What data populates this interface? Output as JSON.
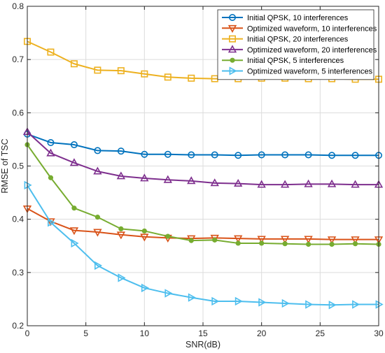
{
  "chart_data": {
    "type": "line",
    "title": "",
    "xlabel": "SNR(dB)",
    "ylabel": "RMSE of TSC",
    "xlim": [
      0,
      30
    ],
    "ylim": [
      0.2,
      0.8
    ],
    "xticks": [
      0,
      5,
      10,
      15,
      20,
      25,
      30
    ],
    "yticks": [
      0.2,
      0.3,
      0.4,
      0.5,
      0.6,
      0.7,
      0.8
    ],
    "grid": true,
    "legend_position": "top-right",
    "x": [
      0,
      2,
      4,
      6,
      8,
      10,
      12,
      14,
      16,
      18,
      20,
      22,
      24,
      26,
      28,
      30
    ],
    "series": [
      {
        "name": "Initial QPSK, 10 interferences",
        "color": "#0072BD",
        "marker": "circle",
        "values": [
          0.56,
          0.544,
          0.54,
          0.529,
          0.528,
          0.522,
          0.522,
          0.521,
          0.521,
          0.52,
          0.521,
          0.521,
          0.521,
          0.52,
          0.52,
          0.52
        ]
      },
      {
        "name": "Optimized waveform, 10 interferences",
        "color": "#D95319",
        "marker": "triangle-down",
        "values": [
          0.42,
          0.396,
          0.379,
          0.376,
          0.371,
          0.367,
          0.365,
          0.364,
          0.365,
          0.364,
          0.363,
          0.363,
          0.363,
          0.362,
          0.362,
          0.362
        ]
      },
      {
        "name": "Initial QPSK, 20 interferences",
        "color": "#EDB120",
        "marker": "square",
        "values": [
          0.734,
          0.714,
          0.692,
          0.68,
          0.679,
          0.673,
          0.667,
          0.665,
          0.664,
          0.664,
          0.665,
          0.665,
          0.664,
          0.664,
          0.663,
          0.663
        ]
      },
      {
        "name": "Optimized waveform, 20 interferences",
        "color": "#7E2F8E",
        "marker": "triangle-up",
        "values": [
          0.564,
          0.524,
          0.506,
          0.49,
          0.481,
          0.477,
          0.474,
          0.472,
          0.468,
          0.467,
          0.465,
          0.465,
          0.466,
          0.466,
          0.465,
          0.465
        ]
      },
      {
        "name": "Initial QPSK, 5 interferences",
        "color": "#77AC30",
        "marker": "dot",
        "values": [
          0.54,
          0.478,
          0.421,
          0.404,
          0.382,
          0.378,
          0.368,
          0.36,
          0.361,
          0.355,
          0.355,
          0.354,
          0.353,
          0.353,
          0.354,
          0.353
        ]
      },
      {
        "name": "Optimized waveform, 5 interferences",
        "color": "#4DBEEE",
        "marker": "triangle-right",
        "values": [
          0.464,
          0.394,
          0.355,
          0.313,
          0.29,
          0.271,
          0.261,
          0.253,
          0.246,
          0.246,
          0.244,
          0.242,
          0.24,
          0.239,
          0.24,
          0.24
        ]
      }
    ]
  }
}
